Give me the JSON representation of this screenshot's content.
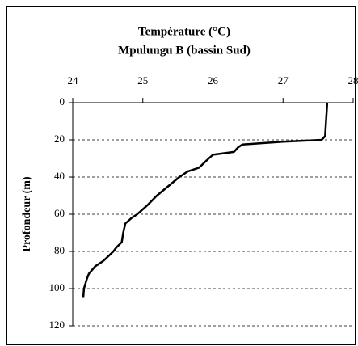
{
  "chart_data": {
    "type": "line",
    "title": "Température (°C)",
    "subtitle": "Mpulungu B (bassin Sud)",
    "ylabel": "Profondeur (m)",
    "x_axis_position": "top",
    "y_inverted": true,
    "x": [
      27.63,
      27.6,
      27.55,
      27.0,
      26.42,
      26.36,
      26.3,
      26.0,
      25.94,
      25.8,
      25.64,
      25.52,
      25.36,
      25.2,
      25.07,
      24.98,
      24.92,
      24.84,
      24.75,
      24.72,
      24.7,
      24.62,
      24.58,
      24.44,
      24.32,
      24.23,
      24.2,
      24.16,
      24.15
    ],
    "series": [
      {
        "color": "#000000",
        "values": [
          0,
          18,
          20,
          21,
          22.5,
          24,
          26.5,
          28,
          30,
          35,
          37,
          40,
          45,
          50,
          55,
          58,
          60,
          62,
          65,
          70,
          75,
          78,
          80,
          85,
          88,
          92,
          95,
          100,
          105
        ]
      }
    ],
    "xlim": [
      24,
      28
    ],
    "xticks": [
      24,
      25,
      26,
      27,
      28
    ],
    "ylim": [
      0,
      120
    ],
    "yticks": [
      0,
      20,
      40,
      60,
      80,
      100,
      120
    ],
    "grid": true
  }
}
